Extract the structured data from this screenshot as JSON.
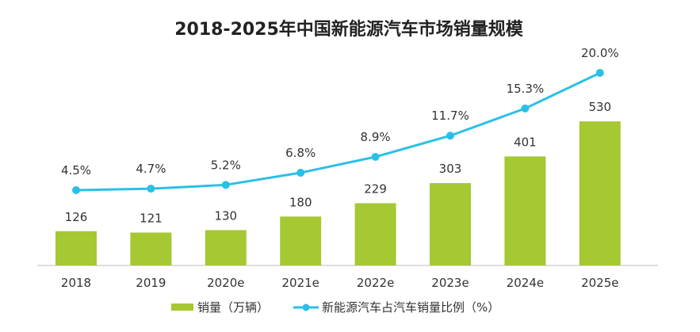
{
  "chart_data": {
    "type": "bar+line",
    "title": "2018-2025年中国新能源汽车市场销量规模",
    "categories": [
      "2018",
      "2019",
      "2020e",
      "2021e",
      "2022e",
      "2023e",
      "2024e",
      "2025e"
    ],
    "series": [
      {
        "name": "销量（万辆）",
        "type": "bar",
        "values": [
          126,
          121,
          130,
          180,
          229,
          303,
          401,
          530
        ],
        "labels": [
          "126",
          "121",
          "130",
          "180",
          "229",
          "303",
          "401",
          "530"
        ],
        "color": "#a6c832"
      },
      {
        "name": "新能源汽车占汽车销量比例（%）",
        "type": "line",
        "values": [
          4.5,
          4.7,
          5.2,
          6.8,
          8.9,
          11.7,
          15.3,
          20.0
        ],
        "labels": [
          "4.5%",
          "4.7%",
          "5.2%",
          "6.8%",
          "8.9%",
          "11.7%",
          "15.3%",
          "20.0%"
        ],
        "color": "#29c0e8"
      }
    ],
    "legend_position": "bottom",
    "grid": false
  }
}
